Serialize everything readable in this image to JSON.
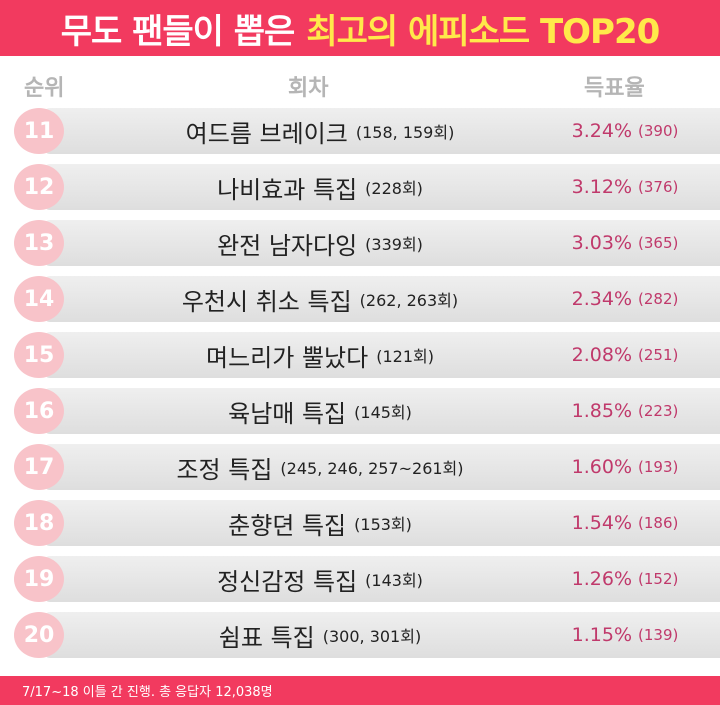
{
  "header": {
    "title_white": "무도 팬들이 뽑은",
    "title_yellow": "최고의 에피소드 TOP20"
  },
  "columns": {
    "rank": "순위",
    "episode": "회차",
    "votes": "득표율"
  },
  "rows": [
    {
      "rank": "11",
      "title": "여드름 브레이크",
      "episodes": "(158, 159회)",
      "percent": "3.24%",
      "count": "(390)"
    },
    {
      "rank": "12",
      "title": "나비효과 특집",
      "episodes": "(228회)",
      "percent": "3.12%",
      "count": "(376)"
    },
    {
      "rank": "13",
      "title": "완전 남자다잉",
      "episodes": "(339회)",
      "percent": "3.03%",
      "count": "(365)"
    },
    {
      "rank": "14",
      "title": "우천시 취소 특집",
      "episodes": "(262, 263회)",
      "percent": "2.34%",
      "count": "(282)"
    },
    {
      "rank": "15",
      "title": "며느리가 뿔났다",
      "episodes": "(121회)",
      "percent": "2.08%",
      "count": "(251)"
    },
    {
      "rank": "16",
      "title": "육남매 특집",
      "episodes": "(145회)",
      "percent": "1.85%",
      "count": "(223)"
    },
    {
      "rank": "17",
      "title": "조정 특집",
      "episodes": "(245, 246, 257~261회)",
      "percent": "1.60%",
      "count": "(193)"
    },
    {
      "rank": "18",
      "title": "춘향뎐 특집",
      "episodes": "(153회)",
      "percent": "1.54%",
      "count": "(186)"
    },
    {
      "rank": "19",
      "title": "정신감정 특집",
      "episodes": "(143회)",
      "percent": "1.26%",
      "count": "(152)"
    },
    {
      "rank": "20",
      "title": "쉼표 특집",
      "episodes": "(300, 301회)",
      "percent": "1.15%",
      "count": "(139)"
    }
  ],
  "footer": {
    "note": "7/17~18 이틀 간 진행. 총 응답자 12,038명"
  },
  "colors": {
    "accent": "#f23a5f",
    "highlight": "#ffe94a",
    "rank_badge": "#f8c3c9",
    "percent_text": "#c0396b"
  }
}
